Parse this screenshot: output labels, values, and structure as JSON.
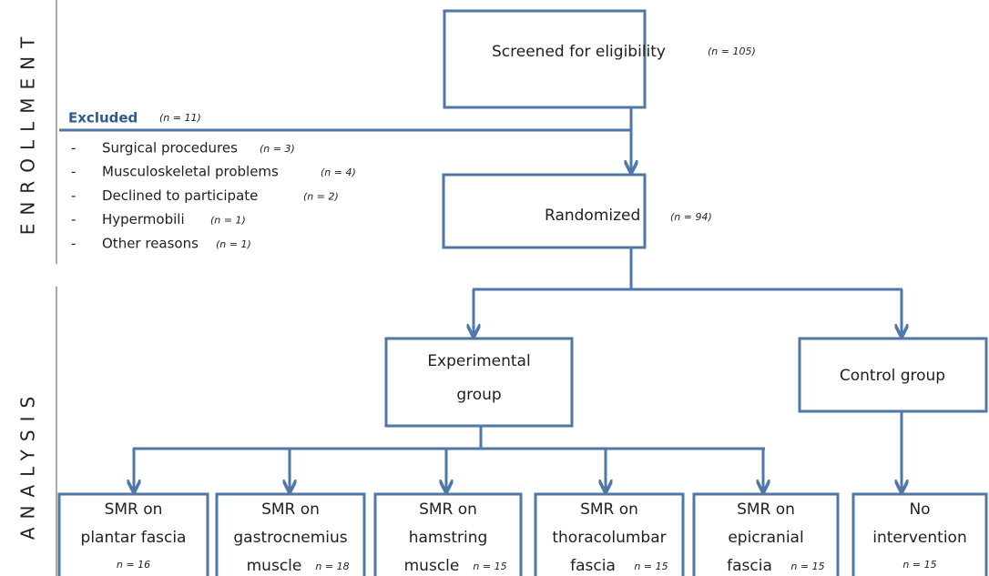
{
  "side_labels": {
    "enrollment": "ENROLLMENT",
    "analysis": "ANALYSIS"
  },
  "screened": {
    "label": "Screened for eligibility",
    "n": "(n = 105)"
  },
  "excluded": {
    "label": "Excluded",
    "n": "(n = 11)",
    "reasons": [
      {
        "label": "Surgical procedures",
        "n": "(n = 3)"
      },
      {
        "label": "Musculoskeletal problems",
        "n": "(n = 4)"
      },
      {
        "label": "Declined to participate",
        "n": "(n = 2)"
      },
      {
        "label": "Hypermobili",
        "n": "(n = 1)"
      },
      {
        "label": "Other reasons",
        "n": "(n = 1)"
      }
    ]
  },
  "randomized": {
    "label": "Randomized",
    "n": "(n = 94)"
  },
  "groups": [
    {
      "lines": [
        "Experimental",
        "group"
      ]
    },
    {
      "lines": [
        "Control group"
      ]
    }
  ],
  "arms": [
    {
      "lines": [
        "SMR on",
        "plantar fascia"
      ],
      "n": "n = 16"
    },
    {
      "lines": [
        "SMR on",
        "gastrocnemius",
        "muscle"
      ],
      "n": "n = 18"
    },
    {
      "lines": [
        "SMR on",
        "hamstring",
        "muscle"
      ],
      "n": "n = 15"
    },
    {
      "lines": [
        "SMR on",
        "thoracolumbar",
        "fascia"
      ],
      "n": "n = 15"
    },
    {
      "lines": [
        "SMR on",
        "epicranial",
        "fascia"
      ],
      "n": "n = 15"
    },
    {
      "lines": [
        "No",
        "intervention"
      ],
      "n": "n = 15"
    }
  ]
}
